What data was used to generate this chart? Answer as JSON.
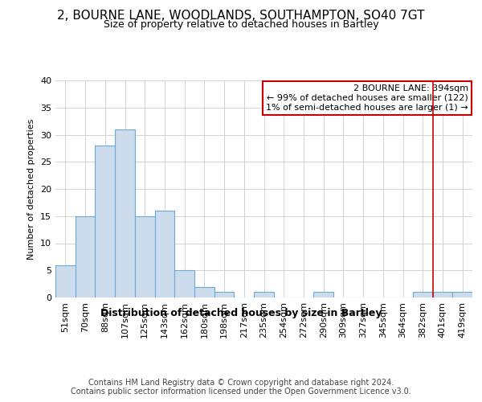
{
  "title": "2, BOURNE LANE, WOODLANDS, SOUTHAMPTON, SO40 7GT",
  "subtitle": "Size of property relative to detached houses in Bartley",
  "xlabel": "Distribution of detached houses by size in Bartley",
  "ylabel": "Number of detached properties",
  "categories": [
    "51sqm",
    "70sqm",
    "88sqm",
    "107sqm",
    "125sqm",
    "143sqm",
    "162sqm",
    "180sqm",
    "198sqm",
    "217sqm",
    "235sqm",
    "254sqm",
    "272sqm",
    "290sqm",
    "309sqm",
    "327sqm",
    "345sqm",
    "364sqm",
    "382sqm",
    "401sqm",
    "419sqm"
  ],
  "values": [
    6,
    15,
    28,
    31,
    15,
    16,
    5,
    2,
    1,
    0,
    1,
    0,
    0,
    1,
    0,
    0,
    0,
    0,
    1,
    1,
    1
  ],
  "bar_color": "#ccdcec",
  "bar_edge_color": "#6aaad4",
  "ylim": [
    0,
    40
  ],
  "yticks": [
    0,
    5,
    10,
    15,
    20,
    25,
    30,
    35,
    40
  ],
  "annotation_box_text": "2 BOURNE LANE: 394sqm\n← 99% of detached houses are smaller (122)\n1% of semi-detached houses are larger (1) →",
  "red_line_x": 18.5,
  "red_line_color": "#cc0000",
  "footer_text": "Contains HM Land Registry data © Crown copyright and database right 2024.\nContains public sector information licensed under the Open Government Licence v3.0.",
  "background_color": "#ffffff",
  "plot_bg_color": "#ffffff",
  "grid_color": "#cccccc",
  "title_fontsize": 11,
  "subtitle_fontsize": 9,
  "xlabel_fontsize": 9,
  "ylabel_fontsize": 8,
  "tick_fontsize": 8,
  "footer_fontsize": 7,
  "annot_fontsize": 8
}
